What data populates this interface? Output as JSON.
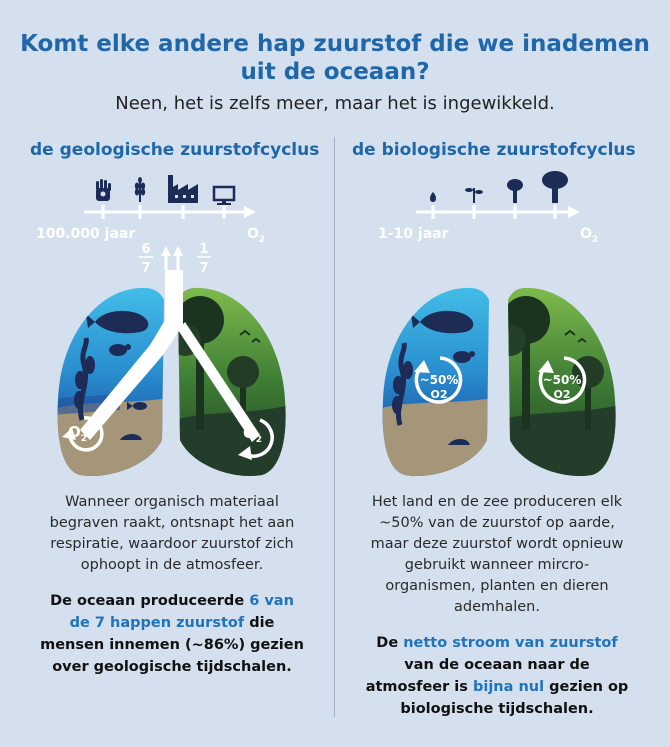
{
  "title": "Komt elke andere hap zuurstof die we inademen uit de oceaan?",
  "subtitle": "Neen, het is zelfs meer, maar het is ingewikkeld.",
  "left": {
    "heading": "de geologische zuurstofcyclus",
    "timeline_start": "100.000 jaar",
    "timeline_end": "O2",
    "fraction_left": {
      "num": "6",
      "den": "7"
    },
    "fraction_right": {
      "num": "1",
      "den": "7"
    },
    "ocean_lung_label": "O2",
    "land_lung_label": "O2",
    "description": "Wanneer organisch materiaal begraven raakt, ontsnapt het aan respiratie, waardoor zuurstof zich ophoopt in de atmosfeer.",
    "conclusion": {
      "part1": "De oceaan produceerde ",
      "highlight": "6 van de 7 happen zuurstof",
      "part2": " die mensen innemen (~86%) gezien over geologische tijd­schalen."
    },
    "icons": [
      "hand-icon",
      "wheat-icon",
      "factory-icon",
      "computer-icon"
    ]
  },
  "right": {
    "heading": "de biologische zuurstofcyclus",
    "timeline_start": "1-10 jaar",
    "timeline_end": "O2",
    "ocean_lung_label": "~50%",
    "ocean_lung_sub": "O2",
    "land_lung_label": "~50%",
    "land_lung_sub": "O2",
    "description": "Het land en de zee produceren elk ~50% van de zuurstof op aarde, maar deze zuurstof wordt opnieuw gebruikt wanneer mircro-organismen, planten en dieren ademhalen.",
    "conclusion": {
      "part1": "De ",
      "highlight1": "netto stroom van zuurstof",
      "part2": " van de oceaan naar de atmosfeer is ",
      "highlight2": "bijna nul",
      "part3": " gezien op biologische tijdschalen."
    },
    "icons": [
      "seed-icon",
      "sprout-icon",
      "young-tree-icon",
      "tree-icon"
    ]
  },
  "colors": {
    "background": "#d5e0ee",
    "accent": "#1f67a8",
    "ocean_top": "#3fb6e0",
    "ocean_deep": "#1c4e9a",
    "sand": "#a59579",
    "forest_light": "#6fb24a",
    "forest_dark": "#1b3a22"
  }
}
